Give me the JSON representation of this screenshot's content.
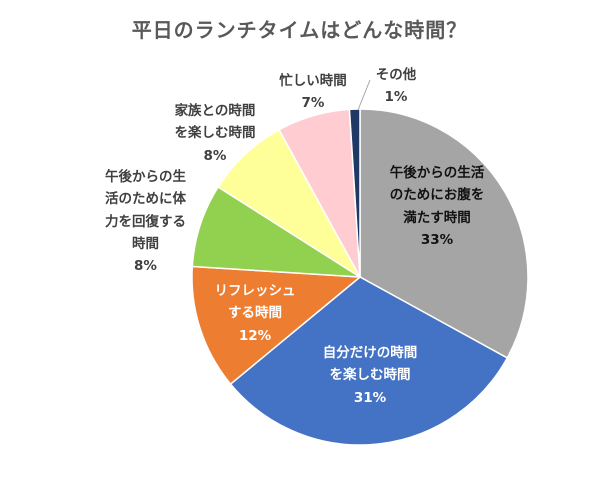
{
  "chart_data": {
    "type": "pie",
    "title": "平日のランチタイムはどんな時間？",
    "slices": [
      {
        "lines": [
          "午後からの生活",
          "のためにお腹を",
          "満たす時間"
        ],
        "percent_label": "33%",
        "value": 33,
        "color": "#a5a5a5"
      },
      {
        "lines": [
          "自分だけの時間",
          "を楽しむ時間"
        ],
        "percent_label": "31%",
        "value": 31,
        "color": "#4472c4"
      },
      {
        "lines": [
          "リフレッシュ",
          "する時間"
        ],
        "percent_label": "12%",
        "value": 12,
        "color": "#ed7d31"
      },
      {
        "lines": [
          "午後からの生",
          "活のために体",
          "力を回復する",
          "時間"
        ],
        "percent_label": "8%",
        "value": 8,
        "color": "#92d050"
      },
      {
        "lines": [
          "家族との時間",
          "を楽しむ時間"
        ],
        "percent_label": "8%",
        "value": 8,
        "color": "#ffff99"
      },
      {
        "lines": [
          "忙しい時間"
        ],
        "percent_label": "7%",
        "value": 7,
        "color": "#ffccd1"
      },
      {
        "lines": [
          "その他"
        ],
        "percent_label": "1%",
        "value": 1,
        "color": "#1f3864"
      }
    ],
    "start": "12 o'clock",
    "direction": "clockwise"
  }
}
